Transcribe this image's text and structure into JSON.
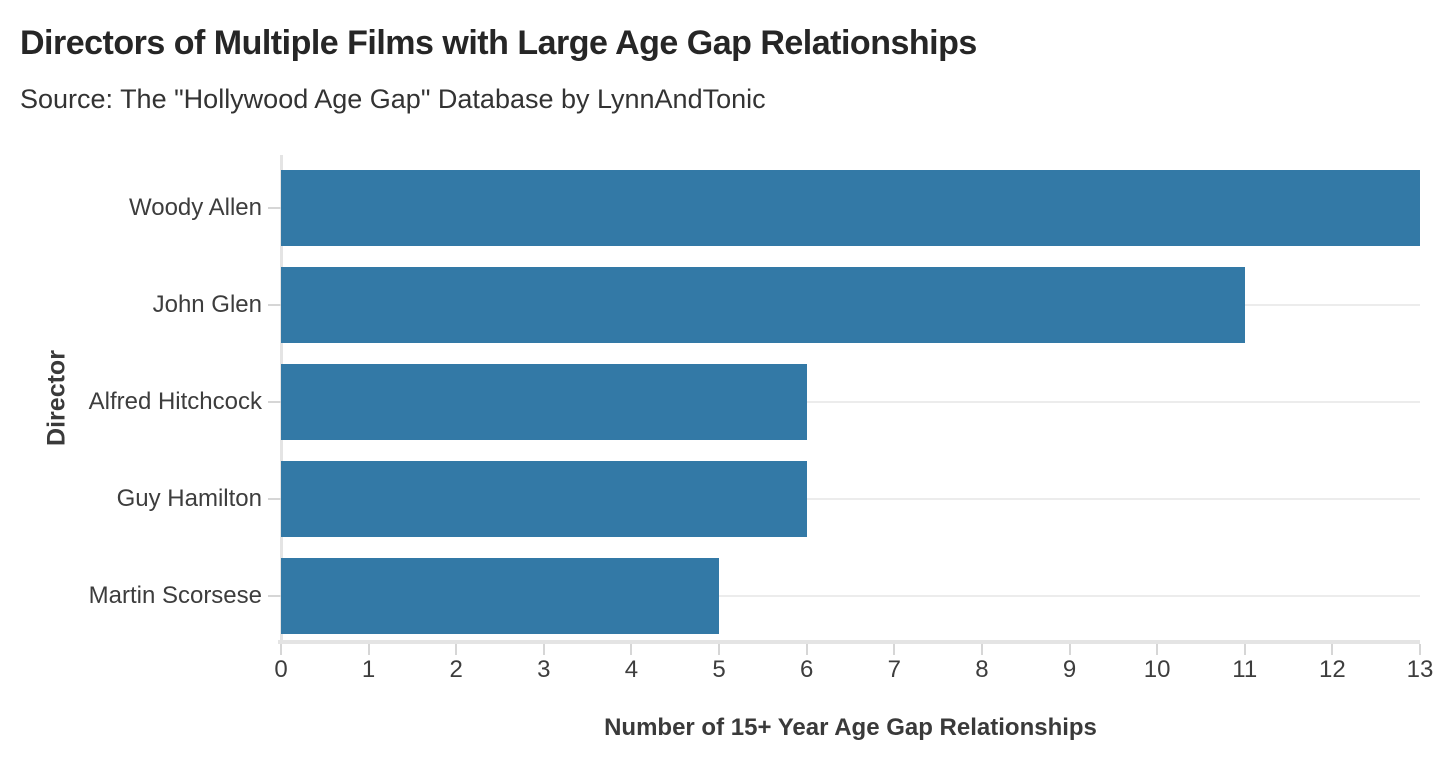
{
  "header": {
    "title": "Directors of Multiple Films with Large Age Gap Relationships",
    "subtitle": "Source: The \"Hollywood Age Gap\" Database by LynnAndTonic"
  },
  "chart_data": {
    "type": "bar",
    "orientation": "horizontal",
    "title": "Directors of Multiple Films with Large Age Gap Relationships",
    "subtitle": "Source: The \"Hollywood Age Gap\" Database by LynnAndTonic",
    "categories": [
      "Woody Allen",
      "John Glen",
      "Alfred Hitchcock",
      "Guy Hamilton",
      "Martin Scorsese"
    ],
    "values": [
      13,
      11,
      6,
      6,
      5
    ],
    "xlabel": "Number of 15+ Year Age Gap Relationships",
    "ylabel": "Director",
    "xlim": [
      0,
      13
    ],
    "x_ticks": [
      "0",
      "1",
      "2",
      "3",
      "4",
      "5",
      "6",
      "7",
      "8",
      "9",
      "10",
      "11",
      "12",
      "13"
    ],
    "grid": "light horizontal gridline per category row",
    "legend": "none",
    "colors": {
      "bar": "#3379A6",
      "gridline": "#ececec",
      "axis_line": "#e4e4e4",
      "tick_mark": "#d6d6d6",
      "title_text": "#262626",
      "label_text": "#3d3d3d"
    }
  }
}
